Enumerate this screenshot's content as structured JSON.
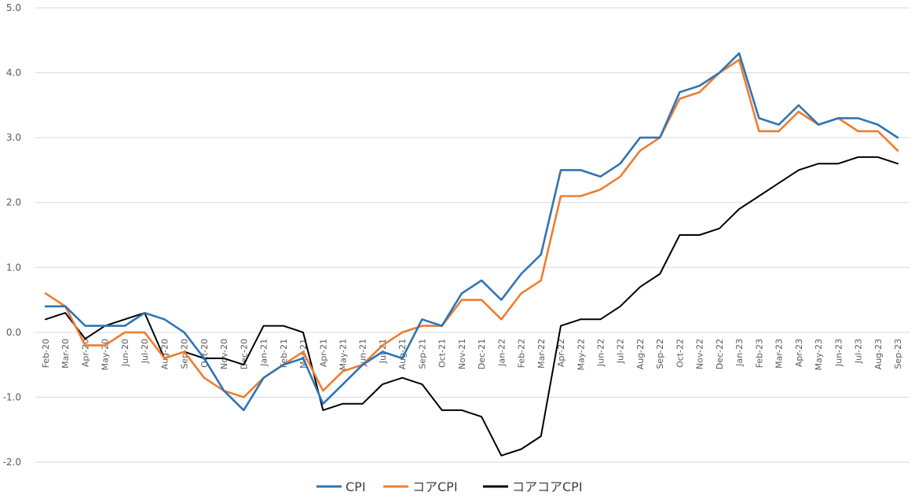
{
  "chart_data": {
    "type": "line",
    "title": "",
    "xlabel": "",
    "ylabel": "",
    "ylim": [
      -2.0,
      5.0
    ],
    "ytick_labels": [
      "-2.0",
      "-1.0",
      "0.0",
      "1.0",
      "2.0",
      "3.0",
      "4.0",
      "5.0"
    ],
    "ytick_values": [
      -2,
      -1,
      0,
      1,
      2,
      3,
      4,
      5
    ],
    "grid": true,
    "legend_position": "bottom",
    "categories": [
      "Feb-20",
      "Mar-20",
      "Apr-20",
      "May-20",
      "Jun-20",
      "Jul-20",
      "Aug-20",
      "Sep-20",
      "Oct-20",
      "Nov-20",
      "Dec-20",
      "Jan-21",
      "Feb-21",
      "Mar-21",
      "Apr-21",
      "May-21",
      "Jun-21",
      "Jul-21",
      "Aug-21",
      "Sep-21",
      "Oct-21",
      "Nov-21",
      "Dec-21",
      "Jan-22",
      "Feb-22",
      "Mar-22",
      "Apr-22",
      "May-22",
      "Jun-22",
      "Jul-22",
      "Aug-22",
      "Sep-22",
      "Oct-22",
      "Nov-22",
      "Dec-22",
      "Jan-23",
      "Feb-23",
      "Mar-23",
      "Apr-23",
      "May-23",
      "Jun-23",
      "Jul-23",
      "Aug-23",
      "Sep-23"
    ],
    "series": [
      {
        "name": "CPI",
        "color": "#2E75B6",
        "values": [
          0.4,
          0.4,
          0.1,
          0.1,
          0.1,
          0.3,
          0.2,
          0.0,
          -0.4,
          -0.9,
          -1.2,
          -0.7,
          -0.5,
          -0.4,
          -1.1,
          -0.8,
          -0.5,
          -0.3,
          -0.4,
          0.2,
          0.1,
          0.6,
          0.8,
          0.5,
          0.9,
          1.2,
          2.5,
          2.5,
          2.4,
          2.6,
          3.0,
          3.0,
          3.7,
          3.8,
          4.0,
          4.3,
          3.3,
          3.2,
          3.5,
          3.2,
          3.3,
          3.3,
          3.2,
          3.0
        ]
      },
      {
        "name": "コアCPI",
        "color": "#ED7D31",
        "values": [
          0.6,
          0.4,
          -0.2,
          -0.2,
          0.0,
          0.0,
          -0.4,
          -0.3,
          -0.7,
          -0.9,
          -1.0,
          -0.7,
          -0.5,
          -0.3,
          -0.9,
          -0.6,
          -0.5,
          -0.2,
          0.0,
          0.1,
          0.1,
          0.5,
          0.5,
          0.2,
          0.6,
          0.8,
          2.1,
          2.1,
          2.2,
          2.4,
          2.8,
          3.0,
          3.6,
          3.7,
          4.0,
          4.2,
          3.1,
          3.1,
          3.4,
          3.2,
          3.3,
          3.1,
          3.1,
          2.8
        ]
      },
      {
        "name": "コアコアCPI",
        "color": "#000000",
        "values": [
          0.2,
          0.3,
          -0.1,
          0.1,
          0.2,
          0.3,
          -0.4,
          -0.3,
          -0.4,
          -0.4,
          -0.5,
          0.1,
          0.1,
          0.0,
          -1.2,
          -1.1,
          -1.1,
          -0.8,
          -0.7,
          -0.8,
          -1.2,
          -1.2,
          -1.3,
          -1.9,
          -1.8,
          -1.6,
          0.1,
          0.2,
          0.2,
          0.4,
          0.7,
          0.9,
          1.5,
          1.5,
          1.6,
          1.9,
          2.1,
          2.3,
          2.5,
          2.6,
          2.6,
          2.7,
          2.7,
          2.6
        ]
      }
    ]
  }
}
